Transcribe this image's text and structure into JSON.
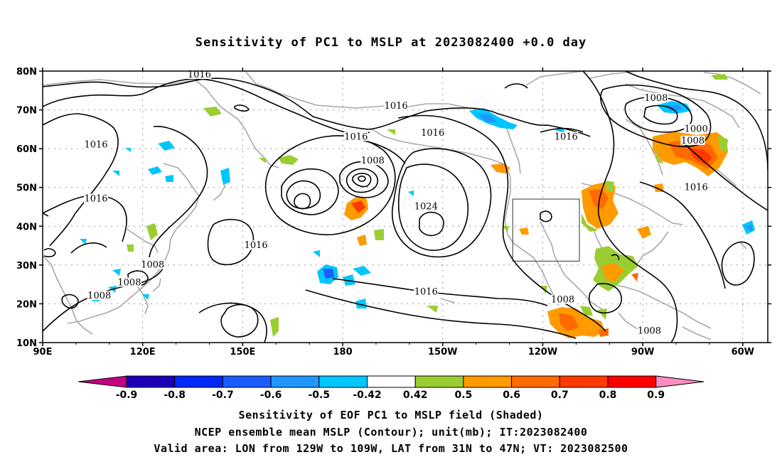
{
  "title": "Sensitivity of PC1 to MSLP at 2023082400 +0.0 day",
  "lat_labels": [
    "80N",
    "70N",
    "60N",
    "50N",
    "40N",
    "30N",
    "20N",
    "10N"
  ],
  "lon_labels": [
    "90E",
    "120E",
    "150E",
    "180",
    "150W",
    "120W",
    "90W",
    "60W"
  ],
  "contour_labels": [
    {
      "text": "1016",
      "lon": 137,
      "lat": 78.7
    },
    {
      "text": "1016",
      "lon": 196,
      "lat": 70.7
    },
    {
      "text": "1016",
      "lon": 184,
      "lat": 62.7
    },
    {
      "text": "1016",
      "lon": 207,
      "lat": 63.7
    },
    {
      "text": "1008",
      "lon": 189,
      "lat": 56.5
    },
    {
      "text": "1016",
      "lon": 106,
      "lat": 60.7
    },
    {
      "text": "1016",
      "lon": 106,
      "lat": 46.7
    },
    {
      "text": "1024",
      "lon": 205,
      "lat": 44.7
    },
    {
      "text": "1016",
      "lon": 154,
      "lat": 34.7
    },
    {
      "text": "1008",
      "lon": 123,
      "lat": 29.7
    },
    {
      "text": "1008",
      "lon": 116,
      "lat": 25.1
    },
    {
      "text": "1008",
      "lon": 107,
      "lat": 21.7
    },
    {
      "text": "1016",
      "lon": 205,
      "lat": 22.7
    },
    {
      "text": "1016",
      "lon": 247,
      "lat": 62.7
    },
    {
      "text": "1008",
      "lon": 274,
      "lat": 72.7
    },
    {
      "text": "1000",
      "lon": 286,
      "lat": 64.7
    },
    {
      "text": "1008",
      "lon": 285,
      "lat": 61.7
    },
    {
      "text": "1016",
      "lon": 286,
      "lat": 49.7
    },
    {
      "text": "1008",
      "lon": 246,
      "lat": 20.7
    },
    {
      "text": "1008",
      "lon": 272,
      "lat": 12.7
    }
  ],
  "valid_box": {
    "lon_min": -129,
    "lon_max": -109,
    "lat_min": 31,
    "lat_max": 47
  },
  "colorbar": {
    "labels": [
      "-0.9",
      "-0.8",
      "-0.7",
      "-0.6",
      "-0.5",
      "-0.42",
      "0.42",
      "0.5",
      "0.6",
      "0.7",
      "0.8",
      "0.9"
    ],
    "colors": [
      "#1b00b8",
      "#0028f8",
      "#1a5cff",
      "#2196ff",
      "#00c6ff",
      "#ffffff",
      "#9acd32",
      "#ff9a00",
      "#ff6a00",
      "#ff3a00",
      "#ff0000"
    ],
    "low_arrow_color": "#c40085",
    "high_arrow_color": "#ff8cc4"
  },
  "captions": {
    "line1": "Sensitivity of EOF PC1 to MSLP field (Shaded)",
    "line2": "NCEP ensemble mean MSLP (Contour); unit(mb); IT:2023082400",
    "line3": "Valid area: LON from 129W to 109W, LAT from 31N to 47N; VT: 2023082500"
  }
}
